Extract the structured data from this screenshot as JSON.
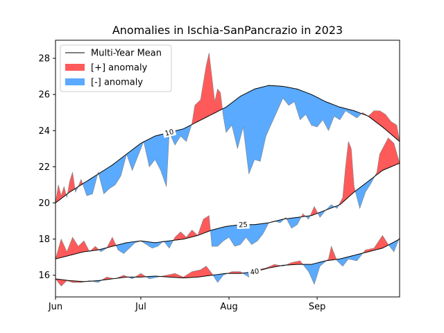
{
  "chart_data": {
    "type": "area",
    "title": "Anomalies in Ischia-SanPancrazio in 2023",
    "xlabel": "",
    "ylabel": "",
    "xlim": [
      "2023-06-01",
      "2023-09-30"
    ],
    "ylim": [
      14.8,
      29.0
    ],
    "x_ticks": [
      {
        "date": "2023-06-01",
        "label": "Jun"
      },
      {
        "date": "2023-07-01",
        "label": "Jul"
      },
      {
        "date": "2023-08-01",
        "label": "Aug"
      },
      {
        "date": "2023-09-01",
        "label": "Sep"
      }
    ],
    "y_ticks": [
      16,
      18,
      20,
      22,
      24,
      26,
      28
    ],
    "grid": false,
    "legend": {
      "placement": "upper-left",
      "entries": [
        {
          "label": "Multi-Year Mean",
          "kind": "line",
          "color": "#000000"
        },
        {
          "label": "[+] anomaly",
          "kind": "patch",
          "color": "#ff5a5a"
        },
        {
          "label": "[-] anomaly",
          "kind": "patch",
          "color": "#5aaaff"
        }
      ]
    },
    "colors": {
      "positive": "#ff5a5a",
      "negative": "#5aaaff",
      "mean": "#000000",
      "edge": "#808080"
    },
    "series": [
      {
        "label": "10",
        "label_date": "2023-07-11",
        "mean": [
          [
            "2023-06-01",
            20.0
          ],
          [
            "2023-06-06",
            20.6
          ],
          [
            "2023-06-11",
            21.1
          ],
          [
            "2023-06-16",
            21.6
          ],
          [
            "2023-06-21",
            22.1
          ],
          [
            "2023-06-26",
            22.7
          ],
          [
            "2023-07-01",
            23.3
          ],
          [
            "2023-07-06",
            23.7
          ],
          [
            "2023-07-11",
            23.9
          ],
          [
            "2023-07-16",
            24.1
          ],
          [
            "2023-07-21",
            24.5
          ],
          [
            "2023-07-26",
            24.9
          ],
          [
            "2023-07-31",
            25.3
          ],
          [
            "2023-08-05",
            25.9
          ],
          [
            "2023-08-10",
            26.3
          ],
          [
            "2023-08-15",
            26.5
          ],
          [
            "2023-08-20",
            26.45
          ],
          [
            "2023-08-25",
            26.3
          ],
          [
            "2023-08-30",
            26.0
          ],
          [
            "2023-09-04",
            25.6
          ],
          [
            "2023-09-09",
            25.3
          ],
          [
            "2023-09-14",
            25.1
          ],
          [
            "2023-09-19",
            24.8
          ],
          [
            "2023-09-24",
            24.2
          ],
          [
            "2023-09-30",
            23.4
          ]
        ],
        "values": [
          [
            "2023-06-01",
            20.0
          ],
          [
            "2023-06-02",
            21.0
          ],
          [
            "2023-06-03",
            20.4
          ],
          [
            "2023-06-04",
            20.9
          ],
          [
            "2023-06-05",
            20.3
          ],
          [
            "2023-06-06",
            21.2
          ],
          [
            "2023-06-07",
            21.7
          ],
          [
            "2023-06-08",
            20.6
          ],
          [
            "2023-06-09",
            20.9
          ],
          [
            "2023-06-10",
            21.3
          ],
          [
            "2023-06-12",
            20.4
          ],
          [
            "2023-06-14",
            20.5
          ],
          [
            "2023-06-16",
            21.7
          ],
          [
            "2023-06-18",
            20.5
          ],
          [
            "2023-06-20",
            20.8
          ],
          [
            "2023-06-22",
            21.0
          ],
          [
            "2023-06-24",
            21.5
          ],
          [
            "2023-06-26",
            22.7
          ],
          [
            "2023-06-28",
            21.8
          ],
          [
            "2023-06-30",
            22.6
          ],
          [
            "2023-07-02",
            23.4
          ],
          [
            "2023-07-04",
            22.0
          ],
          [
            "2023-07-06",
            22.4
          ],
          [
            "2023-07-08",
            21.8
          ],
          [
            "2023-07-10",
            20.9
          ],
          [
            "2023-07-11",
            23.9
          ],
          [
            "2023-07-13",
            23.2
          ],
          [
            "2023-07-15",
            23.7
          ],
          [
            "2023-07-17",
            23.4
          ],
          [
            "2023-07-19",
            24.4
          ],
          [
            "2023-07-20",
            25.4
          ],
          [
            "2023-07-22",
            25.7
          ],
          [
            "2023-07-24",
            27.6
          ],
          [
            "2023-07-25",
            28.3
          ],
          [
            "2023-07-27",
            25.6
          ],
          [
            "2023-07-28",
            26.3
          ],
          [
            "2023-07-29",
            26.1
          ],
          [
            "2023-07-30",
            24.8
          ],
          [
            "2023-07-31",
            23.9
          ],
          [
            "2023-08-02",
            24.3
          ],
          [
            "2023-08-04",
            23.0
          ],
          [
            "2023-08-06",
            24.2
          ],
          [
            "2023-08-08",
            21.6
          ],
          [
            "2023-08-10",
            22.4
          ],
          [
            "2023-08-12",
            22.3
          ],
          [
            "2023-08-14",
            23.7
          ],
          [
            "2023-08-16",
            24.4
          ],
          [
            "2023-08-18",
            25.1
          ],
          [
            "2023-08-20",
            25.8
          ],
          [
            "2023-08-22",
            25.4
          ],
          [
            "2023-08-24",
            25.6
          ],
          [
            "2023-08-26",
            24.6
          ],
          [
            "2023-08-28",
            24.9
          ],
          [
            "2023-08-30",
            24.3
          ],
          [
            "2023-09-01",
            24.2
          ],
          [
            "2023-09-03",
            24.6
          ],
          [
            "2023-09-05",
            24.0
          ],
          [
            "2023-09-07",
            24.8
          ],
          [
            "2023-09-09",
            24.6
          ],
          [
            "2023-09-11",
            25.1
          ],
          [
            "2023-09-13",
            24.9
          ],
          [
            "2023-09-15",
            24.7
          ],
          [
            "2023-09-17",
            25.0
          ],
          [
            "2023-09-19",
            24.8
          ],
          [
            "2023-09-21",
            25.1
          ],
          [
            "2023-09-23",
            25.1
          ],
          [
            "2023-09-25",
            24.9
          ],
          [
            "2023-09-27",
            24.5
          ],
          [
            "2023-09-29",
            24.3
          ],
          [
            "2023-09-30",
            23.4
          ]
        ]
      },
      {
        "label": "25",
        "label_date": "2023-08-06",
        "mean": [
          [
            "2023-06-01",
            16.9
          ],
          [
            "2023-06-06",
            17.1
          ],
          [
            "2023-06-11",
            17.3
          ],
          [
            "2023-06-16",
            17.4
          ],
          [
            "2023-06-21",
            17.6
          ],
          [
            "2023-06-26",
            17.8
          ],
          [
            "2023-07-01",
            17.9
          ],
          [
            "2023-07-06",
            17.8
          ],
          [
            "2023-07-11",
            17.9
          ],
          [
            "2023-07-16",
            18.0
          ],
          [
            "2023-07-21",
            18.2
          ],
          [
            "2023-07-26",
            18.5
          ],
          [
            "2023-07-31",
            18.7
          ],
          [
            "2023-08-05",
            18.8
          ],
          [
            "2023-08-10",
            18.8
          ],
          [
            "2023-08-15",
            18.9
          ],
          [
            "2023-08-20",
            19.1
          ],
          [
            "2023-08-25",
            19.2
          ],
          [
            "2023-08-30",
            19.3
          ],
          [
            "2023-09-04",
            19.6
          ],
          [
            "2023-09-09",
            19.9
          ],
          [
            "2023-09-14",
            20.6
          ],
          [
            "2023-09-19",
            21.2
          ],
          [
            "2023-09-24",
            21.8
          ],
          [
            "2023-09-30",
            22.2
          ]
        ],
        "values": [
          [
            "2023-06-01",
            16.9
          ],
          [
            "2023-06-03",
            18.0
          ],
          [
            "2023-06-05",
            17.3
          ],
          [
            "2023-06-07",
            18.1
          ],
          [
            "2023-06-09",
            17.6
          ],
          [
            "2023-06-11",
            17.9
          ],
          [
            "2023-06-13",
            17.3
          ],
          [
            "2023-06-15",
            17.6
          ],
          [
            "2023-06-17",
            17.3
          ],
          [
            "2023-06-19",
            17.5
          ],
          [
            "2023-06-21",
            18.1
          ],
          [
            "2023-06-23",
            17.4
          ],
          [
            "2023-06-25",
            17.2
          ],
          [
            "2023-06-27",
            17.5
          ],
          [
            "2023-06-29",
            17.8
          ],
          [
            "2023-07-01",
            17.9
          ],
          [
            "2023-07-03",
            17.7
          ],
          [
            "2023-07-05",
            17.5
          ],
          [
            "2023-07-07",
            17.6
          ],
          [
            "2023-07-09",
            17.9
          ],
          [
            "2023-07-11",
            17.5
          ],
          [
            "2023-07-13",
            18.1
          ],
          [
            "2023-07-15",
            18.4
          ],
          [
            "2023-07-17",
            18.1
          ],
          [
            "2023-07-19",
            18.5
          ],
          [
            "2023-07-21",
            18.2
          ],
          [
            "2023-07-23",
            19.1
          ],
          [
            "2023-07-25",
            19.3
          ],
          [
            "2023-07-26",
            17.6
          ],
          [
            "2023-07-28",
            17.6
          ],
          [
            "2023-07-30",
            17.9
          ],
          [
            "2023-08-01",
            18.1
          ],
          [
            "2023-08-03",
            17.6
          ],
          [
            "2023-08-05",
            17.7
          ],
          [
            "2023-08-07",
            18.1
          ],
          [
            "2023-08-09",
            17.7
          ],
          [
            "2023-08-11",
            17.9
          ],
          [
            "2023-08-13",
            18.3
          ],
          [
            "2023-08-15",
            18.9
          ],
          [
            "2023-08-17",
            19.0
          ],
          [
            "2023-08-19",
            18.9
          ],
          [
            "2023-08-21",
            19.2
          ],
          [
            "2023-08-23",
            18.6
          ],
          [
            "2023-08-25",
            18.8
          ],
          [
            "2023-08-27",
            19.4
          ],
          [
            "2023-08-29",
            19.1
          ],
          [
            "2023-08-31",
            19.8
          ],
          [
            "2023-09-02",
            19.2
          ],
          [
            "2023-09-04",
            19.6
          ],
          [
            "2023-09-06",
            19.9
          ],
          [
            "2023-09-08",
            19.7
          ],
          [
            "2023-09-10",
            20.3
          ],
          [
            "2023-09-11",
            22.0
          ],
          [
            "2023-09-12",
            23.4
          ],
          [
            "2023-09-13",
            23.0
          ],
          [
            "2023-09-14",
            20.9
          ],
          [
            "2023-09-16",
            19.7
          ],
          [
            "2023-09-18",
            20.6
          ],
          [
            "2023-09-20",
            21.1
          ],
          [
            "2023-09-22",
            21.7
          ],
          [
            "2023-09-23",
            22.7
          ],
          [
            "2023-09-24",
            23.0
          ],
          [
            "2023-09-26",
            23.6
          ],
          [
            "2023-09-28",
            23.3
          ],
          [
            "2023-09-30",
            22.2
          ]
        ]
      },
      {
        "label": "40",
        "label_date": "2023-08-10",
        "mean": [
          [
            "2023-06-01",
            15.8
          ],
          [
            "2023-06-06",
            15.7
          ],
          [
            "2023-06-11",
            15.65
          ],
          [
            "2023-06-16",
            15.7
          ],
          [
            "2023-06-21",
            15.8
          ],
          [
            "2023-06-26",
            15.9
          ],
          [
            "2023-07-01",
            15.9
          ],
          [
            "2023-07-06",
            15.95
          ],
          [
            "2023-07-11",
            15.9
          ],
          [
            "2023-07-16",
            15.85
          ],
          [
            "2023-07-21",
            15.9
          ],
          [
            "2023-07-26",
            16.0
          ],
          [
            "2023-07-31",
            16.1
          ],
          [
            "2023-08-05",
            16.1
          ],
          [
            "2023-08-10",
            16.2
          ],
          [
            "2023-08-15",
            16.4
          ],
          [
            "2023-08-20",
            16.55
          ],
          [
            "2023-08-25",
            16.6
          ],
          [
            "2023-08-30",
            16.6
          ],
          [
            "2023-09-04",
            16.8
          ],
          [
            "2023-09-09",
            16.9
          ],
          [
            "2023-09-14",
            17.1
          ],
          [
            "2023-09-19",
            17.3
          ],
          [
            "2023-09-24",
            17.5
          ],
          [
            "2023-09-30",
            18.0
          ]
        ],
        "values": [
          [
            "2023-06-01",
            15.8
          ],
          [
            "2023-06-03",
            15.4
          ],
          [
            "2023-06-05",
            15.7
          ],
          [
            "2023-06-07",
            15.6
          ],
          [
            "2023-06-10",
            15.6
          ],
          [
            "2023-06-13",
            15.7
          ],
          [
            "2023-06-16",
            15.6
          ],
          [
            "2023-06-19",
            15.9
          ],
          [
            "2023-06-22",
            15.8
          ],
          [
            "2023-06-25",
            16.0
          ],
          [
            "2023-06-28",
            15.8
          ],
          [
            "2023-07-01",
            16.1
          ],
          [
            "2023-07-04",
            15.8
          ],
          [
            "2023-07-07",
            15.9
          ],
          [
            "2023-07-10",
            16.0
          ],
          [
            "2023-07-13",
            16.1
          ],
          [
            "2023-07-16",
            15.9
          ],
          [
            "2023-07-19",
            16.2
          ],
          [
            "2023-07-22",
            16.3
          ],
          [
            "2023-07-24",
            16.5
          ],
          [
            "2023-07-26",
            16.1
          ],
          [
            "2023-07-28",
            15.6
          ],
          [
            "2023-07-30",
            16.0
          ],
          [
            "2023-08-02",
            16.2
          ],
          [
            "2023-08-05",
            16.2
          ],
          [
            "2023-08-08",
            15.9
          ],
          [
            "2023-08-11",
            16.3
          ],
          [
            "2023-08-14",
            16.4
          ],
          [
            "2023-08-17",
            16.6
          ],
          [
            "2023-08-20",
            16.5
          ],
          [
            "2023-08-23",
            16.7
          ],
          [
            "2023-08-26",
            16.8
          ],
          [
            "2023-08-29",
            16.2
          ],
          [
            "2023-08-31",
            15.5
          ],
          [
            "2023-09-02",
            16.5
          ],
          [
            "2023-09-05",
            16.9
          ],
          [
            "2023-09-06",
            17.6
          ],
          [
            "2023-09-08",
            16.8
          ],
          [
            "2023-09-10",
            16.5
          ],
          [
            "2023-09-12",
            16.9
          ],
          [
            "2023-09-15",
            16.8
          ],
          [
            "2023-09-18",
            17.4
          ],
          [
            "2023-09-21",
            17.5
          ],
          [
            "2023-09-24",
            18.2
          ],
          [
            "2023-09-26",
            17.7
          ],
          [
            "2023-09-28",
            17.3
          ],
          [
            "2023-09-30",
            18.1
          ]
        ]
      }
    ]
  }
}
